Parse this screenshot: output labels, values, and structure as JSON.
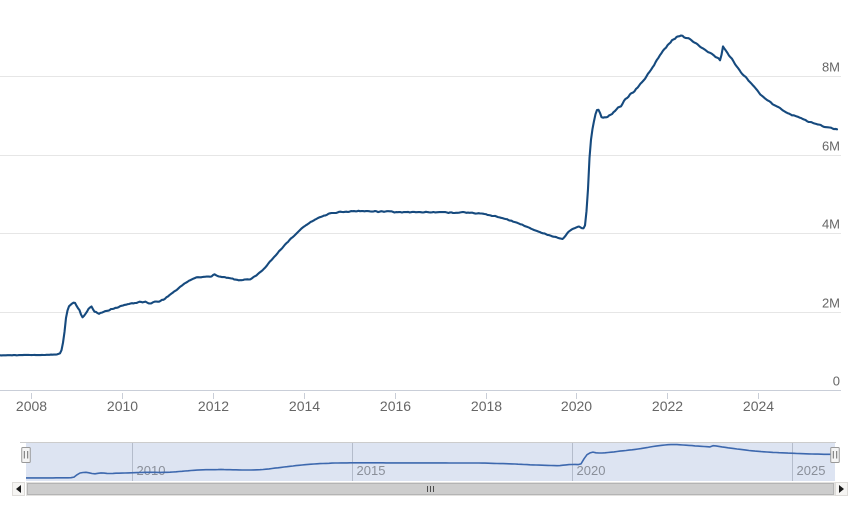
{
  "chart_data": {
    "type": "line",
    "title": "",
    "subtitle": "",
    "xlabel": "",
    "ylabel": "",
    "y_unit": "M (millions)",
    "ylim": [
      0,
      10
    ],
    "x_range_years": [
      2007.32,
      2025.76
    ],
    "grid": "horizontal-only",
    "legend": "none",
    "y_ticks": [
      {
        "label": "0",
        "value": 0
      },
      {
        "label": "2M",
        "value": 2
      },
      {
        "label": "4M",
        "value": 4
      },
      {
        "label": "6M",
        "value": 6
      },
      {
        "label": "8M",
        "value": 8
      }
    ],
    "x_ticks_main": [
      {
        "label": "2008",
        "year": 2008
      },
      {
        "label": "2010",
        "year": 2010
      },
      {
        "label": "2012",
        "year": 2012
      },
      {
        "label": "2014",
        "year": 2014
      },
      {
        "label": "2016",
        "year": 2016
      },
      {
        "label": "2018",
        "year": 2018
      },
      {
        "label": "2020",
        "year": 2020
      },
      {
        "label": "2022",
        "year": 2022
      },
      {
        "label": "2024",
        "year": 2024
      }
    ],
    "series": [
      {
        "name": "total-assets-millions",
        "color": "#164a7e",
        "points": [
          [
            2007.32,
            0.88
          ],
          [
            2007.8,
            0.89
          ],
          [
            2008.2,
            0.89
          ],
          [
            2008.55,
            0.9
          ],
          [
            2008.66,
            0.95
          ],
          [
            2008.72,
            1.3
          ],
          [
            2008.78,
            1.95
          ],
          [
            2008.84,
            2.14
          ],
          [
            2008.9,
            2.2
          ],
          [
            2008.96,
            2.24
          ],
          [
            2009.02,
            2.12
          ],
          [
            2009.07,
            2.03
          ],
          [
            2009.12,
            1.84
          ],
          [
            2009.18,
            1.9
          ],
          [
            2009.26,
            2.06
          ],
          [
            2009.33,
            2.12
          ],
          [
            2009.4,
            1.99
          ],
          [
            2009.5,
            1.95
          ],
          [
            2009.62,
            2.01
          ],
          [
            2009.8,
            2.06
          ],
          [
            2010.0,
            2.14
          ],
          [
            2010.2,
            2.2
          ],
          [
            2010.42,
            2.26
          ],
          [
            2010.6,
            2.22
          ],
          [
            2010.78,
            2.24
          ],
          [
            2010.92,
            2.3
          ],
          [
            2011.1,
            2.46
          ],
          [
            2011.3,
            2.64
          ],
          [
            2011.5,
            2.8
          ],
          [
            2011.62,
            2.86
          ],
          [
            2011.8,
            2.88
          ],
          [
            2011.97,
            2.9
          ],
          [
            2012.03,
            2.96
          ],
          [
            2012.1,
            2.9
          ],
          [
            2012.3,
            2.86
          ],
          [
            2012.55,
            2.8
          ],
          [
            2012.8,
            2.82
          ],
          [
            2012.95,
            2.9
          ],
          [
            2013.1,
            3.06
          ],
          [
            2013.4,
            3.46
          ],
          [
            2013.7,
            3.84
          ],
          [
            2014.0,
            4.16
          ],
          [
            2014.3,
            4.38
          ],
          [
            2014.6,
            4.5
          ],
          [
            2014.9,
            4.55
          ],
          [
            2015.4,
            4.56
          ],
          [
            2016.0,
            4.54
          ],
          [
            2016.8,
            4.53
          ],
          [
            2017.5,
            4.52
          ],
          [
            2017.95,
            4.5
          ],
          [
            2018.3,
            4.4
          ],
          [
            2018.7,
            4.26
          ],
          [
            2019.05,
            4.08
          ],
          [
            2019.35,
            3.96
          ],
          [
            2019.58,
            3.88
          ],
          [
            2019.7,
            3.85
          ],
          [
            2019.82,
            4.02
          ],
          [
            2019.94,
            4.12
          ],
          [
            2020.06,
            4.17
          ],
          [
            2020.15,
            4.1
          ],
          [
            2020.2,
            4.22
          ],
          [
            2020.25,
            5.0
          ],
          [
            2020.3,
            6.2
          ],
          [
            2020.36,
            6.7
          ],
          [
            2020.43,
            7.09
          ],
          [
            2020.47,
            7.18
          ],
          [
            2020.56,
            6.96
          ],
          [
            2020.67,
            6.93
          ],
          [
            2020.78,
            7.03
          ],
          [
            2020.92,
            7.17
          ],
          [
            2021.1,
            7.42
          ],
          [
            2021.35,
            7.72
          ],
          [
            2021.6,
            8.08
          ],
          [
            2021.85,
            8.55
          ],
          [
            2022.05,
            8.84
          ],
          [
            2022.2,
            9.0
          ],
          [
            2022.33,
            9.03
          ],
          [
            2022.46,
            8.96
          ],
          [
            2022.62,
            8.84
          ],
          [
            2022.85,
            8.65
          ],
          [
            2023.05,
            8.51
          ],
          [
            2023.14,
            8.43
          ],
          [
            2023.18,
            8.37
          ],
          [
            2023.21,
            8.8
          ],
          [
            2023.3,
            8.62
          ],
          [
            2023.45,
            8.38
          ],
          [
            2023.62,
            8.1
          ],
          [
            2023.85,
            7.81
          ],
          [
            2024.05,
            7.52
          ],
          [
            2024.3,
            7.3
          ],
          [
            2024.6,
            7.08
          ],
          [
            2024.9,
            6.94
          ],
          [
            2025.2,
            6.8
          ],
          [
            2025.5,
            6.7
          ],
          [
            2025.76,
            6.63
          ]
        ]
      }
    ],
    "navigator": {
      "x_ticks": [
        {
          "label": "2010",
          "year": 2010
        },
        {
          "label": "2015",
          "year": 2015
        },
        {
          "label": "2020",
          "year": 2020
        },
        {
          "label": "2025",
          "year": 2025
        }
      ],
      "selected_range": "full"
    }
  },
  "colors": {
    "background": "#ffffff",
    "series_line": "#164a7e",
    "grid_line": "#e6e6e6",
    "axis_line": "#c9ced8",
    "tick_mark": "#c9ced8",
    "axis_label": "#666666",
    "nav_mask_fill": "rgba(102,133,194,0.22)",
    "nav_outline": "#cccccc",
    "nav_grid": "#9aa2b1",
    "nav_line": "#3d68ae",
    "nav_label": "#8a8f99",
    "handle_fill": "#f4f4f4",
    "handle_border": "#999999",
    "handle_lines": "#6e6e6e",
    "scrollbar_thumb": "#cdcdcd",
    "scrollbar_track": "#f1f0ee"
  },
  "icons": {
    "scroll_left": "left-arrow",
    "scroll_right": "right-arrow",
    "thumb_grip": "grip-lines",
    "nav_handle": "drag-handle"
  }
}
